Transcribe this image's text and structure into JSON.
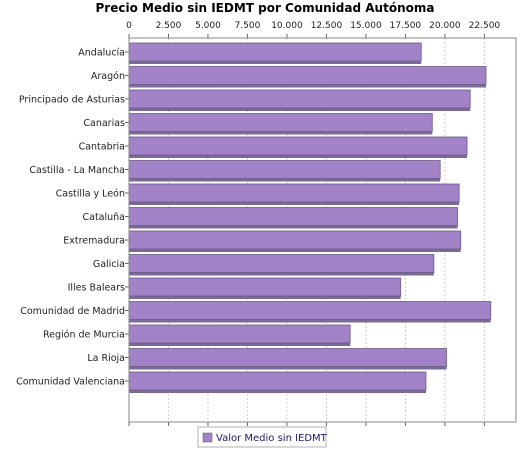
{
  "chart_data": {
    "type": "bar",
    "orientation": "horizontal",
    "title": "Precio Medio sin IEDMT por Comunidad Autónoma",
    "categories": [
      "Andalucía",
      "Aragón",
      "Principado de Asturias",
      "Canarias",
      "Cantabria",
      "Castilla - La Mancha",
      "Castilla y León",
      "Cataluña",
      "Extremadura",
      "Galicia",
      "Illes Balears",
      "Comunidad de Madrid",
      "Región de Murcia",
      "La Rioja",
      "Comunidad Valenciana"
    ],
    "series": [
      {
        "name": "Valor Medio sin IEDMT",
        "color": "#a283c8",
        "values": [
          18500,
          22600,
          21600,
          19200,
          21400,
          19700,
          20900,
          20800,
          21000,
          19300,
          17200,
          22900,
          14000,
          20100,
          18800
        ]
      }
    ],
    "xticks": [
      "0",
      "2.500",
      "5.000",
      "7.500",
      "10.000",
      "12.500",
      "15.000",
      "17.500",
      "20.000",
      "22.500"
    ],
    "xlim": [
      0,
      24500
    ],
    "grid": true,
    "legend_position": "bottom"
  }
}
